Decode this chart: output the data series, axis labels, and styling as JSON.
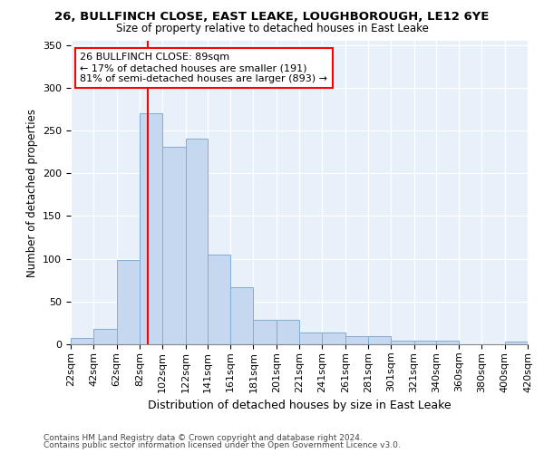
{
  "title1": "26, BULLFINCH CLOSE, EAST LEAKE, LOUGHBOROUGH, LE12 6YE",
  "title2": "Size of property relative to detached houses in East Leake",
  "xlabel": "Distribution of detached houses by size in East Leake",
  "ylabel": "Number of detached properties",
  "footnote1": "Contains HM Land Registry data © Crown copyright and database right 2024.",
  "footnote2": "Contains public sector information licensed under the Open Government Licence v3.0.",
  "annotation_line1": "26 BULLFINCH CLOSE: 89sqm",
  "annotation_line2": "← 17% of detached houses are smaller (191)",
  "annotation_line3": "81% of semi-detached houses are larger (893) →",
  "property_size": 89,
  "bar_color": "#c5d8f0",
  "bar_edge_color": "#7eadd4",
  "vline_color": "red",
  "background_color": "#e8f0fa",
  "grid_color": "#ffffff",
  "bins": [
    22,
    42,
    62,
    82,
    102,
    122,
    141,
    161,
    181,
    201,
    221,
    241,
    261,
    281,
    301,
    321,
    340,
    360,
    380,
    400,
    420
  ],
  "counts": [
    7,
    18,
    99,
    270,
    231,
    241,
    105,
    67,
    29,
    29,
    14,
    14,
    10,
    10,
    4,
    4,
    4,
    0,
    0,
    3
  ],
  "ylim": [
    0,
    355
  ],
  "xlim": [
    22,
    420
  ],
  "yticks": [
    0,
    50,
    100,
    150,
    200,
    250,
    300,
    350
  ]
}
